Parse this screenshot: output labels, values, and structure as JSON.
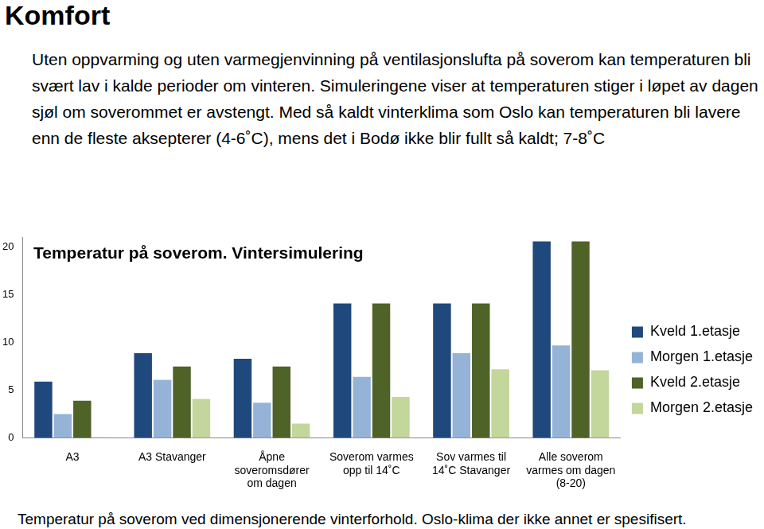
{
  "page": {
    "title": "Komfort",
    "paragraph": "Uten oppvarming og uten varmegjenvinning på ventilasjonslufta på soverom kan temperaturen bli svært lav i kalde perioder om vinteren. Simuleringene viser at temperaturen stiger i løpet av dagen sjøl om soverommet er avstengt. Med så kaldt vinterklima som Oslo kan temperaturen bli lavere enn de fleste aksepterer (4-6˚C), mens det i Bodø ikke blir fullt så kaldt; 7-8˚C",
    "caption": "Temperatur på soverom  ved dimensjonerende vinterforhold. Oslo-klima der ikke annet er spesifisert."
  },
  "chart_data": {
    "type": "bar",
    "title": "Temperatur på soverom. Vintersimulering",
    "categories": [
      "A3",
      "A3 Stavanger",
      "Åpne soveromsdører om dagen",
      "Soverom varmes opp til 14˚C",
      "Sov varmes til 14˚C Stavanger",
      "Alle soverom varmes om dagen (8-20)"
    ],
    "series": [
      {
        "name": "Kveld 1.etasje",
        "color": "#1f497d",
        "values": [
          5.9,
          8.9,
          8.3,
          14.1,
          14.1,
          20.6
        ]
      },
      {
        "name": "Morgen 1.etasje",
        "color": "#95b3d7",
        "values": [
          2.5,
          6.1,
          3.7,
          6.4,
          8.9,
          9.7
        ]
      },
      {
        "name": "Kveld 2.etasje",
        "color": "#4f6228",
        "values": [
          3.9,
          7.5,
          7.5,
          14.1,
          14.1,
          20.6
        ]
      },
      {
        "name": "Morgen 2.etasje",
        "color": "#c3d69b",
        "values": [
          0.1,
          4.1,
          1.5,
          4.3,
          7.2,
          7.1
        ]
      }
    ],
    "ylim": [
      0,
      21
    ],
    "yticks": [
      0,
      5,
      10,
      15,
      20
    ],
    "grid": false,
    "legend": "right"
  }
}
